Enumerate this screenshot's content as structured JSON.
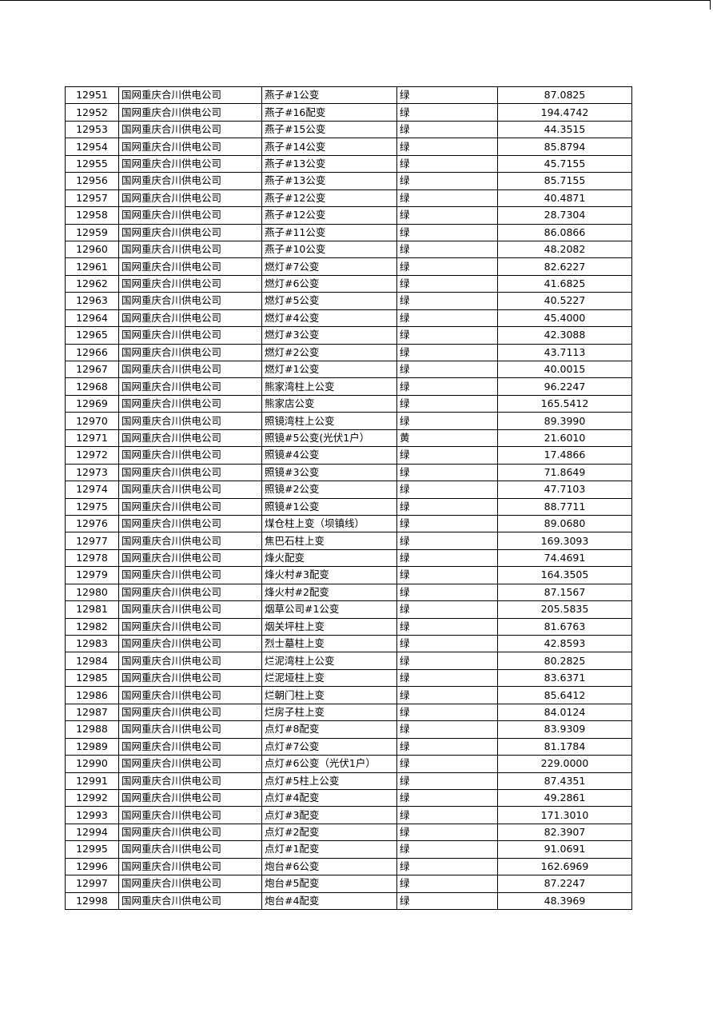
{
  "table": {
    "rows": [
      [
        "12951",
        "国网重庆合川供电公司",
        "燕子#1公变",
        "绿",
        "87.0825"
      ],
      [
        "12952",
        "国网重庆合川供电公司",
        "燕子#16配变",
        "绿",
        "194.4742"
      ],
      [
        "12953",
        "国网重庆合川供电公司",
        "燕子#15公变",
        "绿",
        "44.3515"
      ],
      [
        "12954",
        "国网重庆合川供电公司",
        "燕子#14公变",
        "绿",
        "85.8794"
      ],
      [
        "12955",
        "国网重庆合川供电公司",
        "燕子#13公变",
        "绿",
        "45.7155"
      ],
      [
        "12956",
        "国网重庆合川供电公司",
        "燕子#13公变",
        "绿",
        "85.7155"
      ],
      [
        "12957",
        "国网重庆合川供电公司",
        "燕子#12公变",
        "绿",
        "40.4871"
      ],
      [
        "12958",
        "国网重庆合川供电公司",
        "燕子#12公变",
        "绿",
        "28.7304"
      ],
      [
        "12959",
        "国网重庆合川供电公司",
        "燕子#11公变",
        "绿",
        "86.0866"
      ],
      [
        "12960",
        "国网重庆合川供电公司",
        "燕子#10公变",
        "绿",
        "48.2082"
      ],
      [
        "12961",
        "国网重庆合川供电公司",
        "燃灯#7公变",
        "绿",
        "82.6227"
      ],
      [
        "12962",
        "国网重庆合川供电公司",
        "燃灯#6公变",
        "绿",
        "41.6825"
      ],
      [
        "12963",
        "国网重庆合川供电公司",
        "燃灯#5公变",
        "绿",
        "40.5227"
      ],
      [
        "12964",
        "国网重庆合川供电公司",
        "燃灯#4公变",
        "绿",
        "45.4000"
      ],
      [
        "12965",
        "国网重庆合川供电公司",
        "燃灯#3公变",
        "绿",
        "42.3088"
      ],
      [
        "12966",
        "国网重庆合川供电公司",
        "燃灯#2公变",
        "绿",
        "43.7113"
      ],
      [
        "12967",
        "国网重庆合川供电公司",
        "燃灯#1公变",
        "绿",
        "40.0015"
      ],
      [
        "12968",
        "国网重庆合川供电公司",
        "熊家湾柱上公变",
        "绿",
        "96.2247"
      ],
      [
        "12969",
        "国网重庆合川供电公司",
        "熊家店公变",
        "绿",
        "165.5412"
      ],
      [
        "12970",
        "国网重庆合川供电公司",
        "照镜湾柱上公变",
        "绿",
        "89.3990"
      ],
      [
        "12971",
        "国网重庆合川供电公司",
        "照镜#5公变(光伏1户）",
        "黄",
        "21.6010"
      ],
      [
        "12972",
        "国网重庆合川供电公司",
        "照镜#4公变",
        "绿",
        "17.4866"
      ],
      [
        "12973",
        "国网重庆合川供电公司",
        "照镜#3公变",
        "绿",
        "71.8649"
      ],
      [
        "12974",
        "国网重庆合川供电公司",
        "照镜#2公变",
        "绿",
        "47.7103"
      ],
      [
        "12975",
        "国网重庆合川供电公司",
        "照镜#1公变",
        "绿",
        "88.7711"
      ],
      [
        "12976",
        "国网重庆合川供电公司",
        "煤仓柱上变（坝镇线）",
        "绿",
        "89.0680"
      ],
      [
        "12977",
        "国网重庆合川供电公司",
        "焦巴石柱上变",
        "绿",
        "169.3093"
      ],
      [
        "12978",
        "国网重庆合川供电公司",
        "烽火配变",
        "绿",
        "74.4691"
      ],
      [
        "12979",
        "国网重庆合川供电公司",
        "烽火村#3配变",
        "绿",
        "164.3505"
      ],
      [
        "12980",
        "国网重庆合川供电公司",
        "烽火村#2配变",
        "绿",
        "87.1567"
      ],
      [
        "12981",
        "国网重庆合川供电公司",
        "烟草公司#1公变",
        "绿",
        "205.5835"
      ],
      [
        "12982",
        "国网重庆合川供电公司",
        "烟关坪柱上变",
        "绿",
        "81.6763"
      ],
      [
        "12983",
        "国网重庆合川供电公司",
        "烈士墓柱上变",
        "绿",
        "42.8593"
      ],
      [
        "12984",
        "国网重庆合川供电公司",
        "烂泥湾柱上公变",
        "绿",
        "80.2825"
      ],
      [
        "12985",
        "国网重庆合川供电公司",
        "烂泥垭柱上变",
        "绿",
        "83.6371"
      ],
      [
        "12986",
        "国网重庆合川供电公司",
        "烂朝门柱上变",
        "绿",
        "85.6412"
      ],
      [
        "12987",
        "国网重庆合川供电公司",
        "烂房子柱上变",
        "绿",
        "84.0124"
      ],
      [
        "12988",
        "国网重庆合川供电公司",
        "点灯#8配变",
        "绿",
        "83.9309"
      ],
      [
        "12989",
        "国网重庆合川供电公司",
        "点灯#7公变",
        "绿",
        "81.1784"
      ],
      [
        "12990",
        "国网重庆合川供电公司",
        "点灯#6公变（光伏1户）",
        "绿",
        "229.0000"
      ],
      [
        "12991",
        "国网重庆合川供电公司",
        "点灯#5柱上公变",
        "绿",
        "87.4351"
      ],
      [
        "12992",
        "国网重庆合川供电公司",
        "点灯#4配变",
        "绿",
        "49.2861"
      ],
      [
        "12993",
        "国网重庆合川供电公司",
        "点灯#3配变",
        "绿",
        "171.3010"
      ],
      [
        "12994",
        "国网重庆合川供电公司",
        "点灯#2配变",
        "绿",
        "82.3907"
      ],
      [
        "12995",
        "国网重庆合川供电公司",
        "点灯#1配变",
        "绿",
        "91.0691"
      ],
      [
        "12996",
        "国网重庆合川供电公司",
        "炮台#6公变",
        "绿",
        "162.6969"
      ],
      [
        "12997",
        "国网重庆合川供电公司",
        "炮台#5配变",
        "绿",
        "87.2247"
      ],
      [
        "12998",
        "国网重庆合川供电公司",
        "炮台#4配变",
        "绿",
        "48.3969"
      ]
    ]
  }
}
